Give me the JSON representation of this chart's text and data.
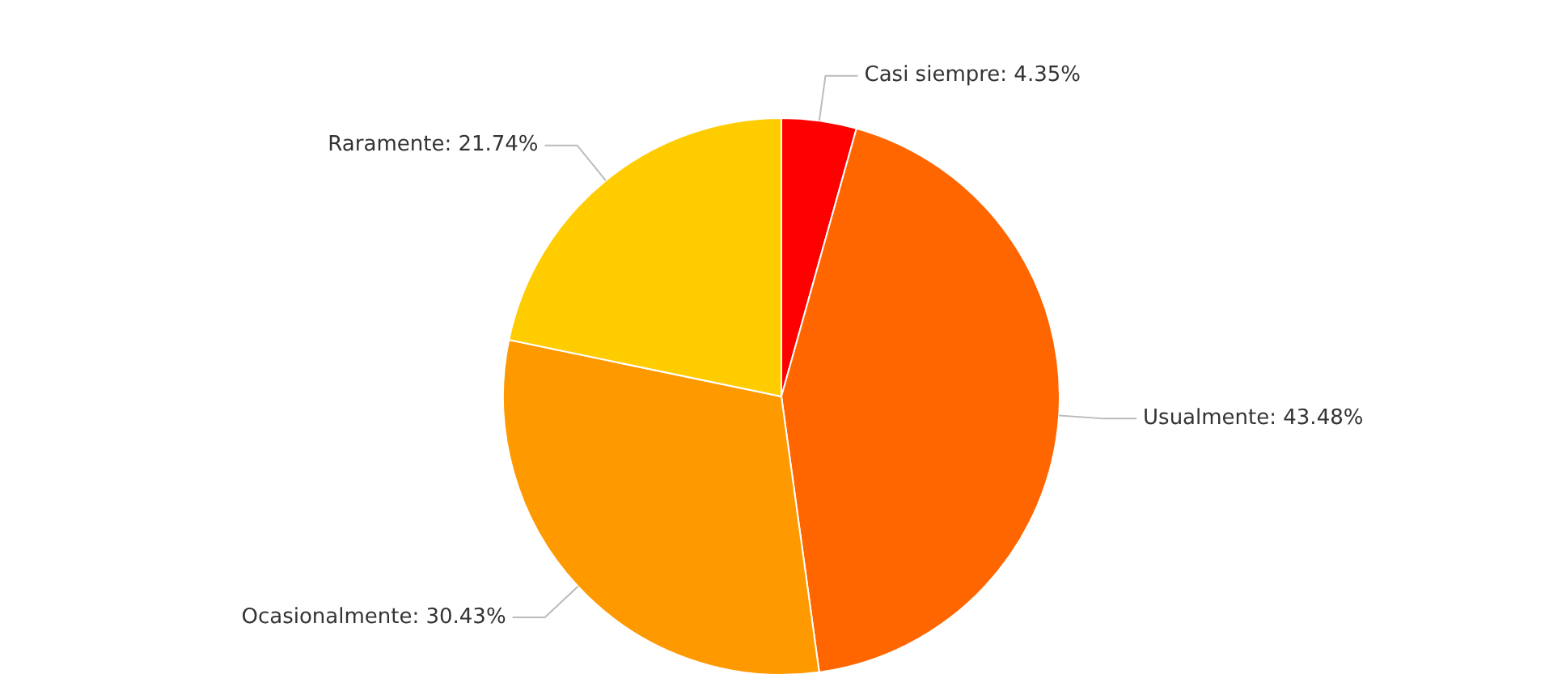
{
  "chart_data": {
    "type": "pie",
    "categories": [
      "Casi siempre: 4.35%",
      "Usualmente: 43.48%",
      "Ocasionalmente: 30.43%",
      "Raramente: 21.74%"
    ],
    "values": [
      4.35,
      43.48,
      30.43,
      21.74
    ],
    "colors": [
      "#ff0000",
      "#ff6600",
      "#ff9900",
      "#ffcc00"
    ],
    "legend": false
  }
}
